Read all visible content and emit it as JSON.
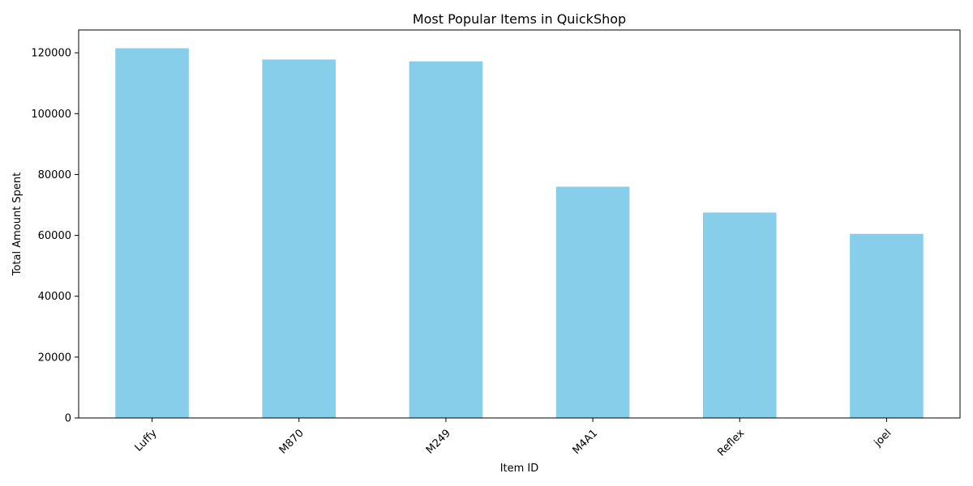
{
  "chart_data": {
    "type": "bar",
    "title": "Most Popular Items in QuickShop",
    "xlabel": "Item ID",
    "ylabel": "Total Amount Spent",
    "categories": [
      "Luffy",
      "M870",
      "M249",
      "M4A1",
      "Reflex",
      "joel"
    ],
    "values": [
      121500,
      117800,
      117200,
      76000,
      67500,
      60500
    ],
    "ylim": [
      0,
      127500
    ],
    "yticks": [
      0,
      20000,
      40000,
      60000,
      80000,
      100000,
      120000
    ],
    "bar_color": "#87CEEB",
    "grid": false,
    "legend": false
  }
}
